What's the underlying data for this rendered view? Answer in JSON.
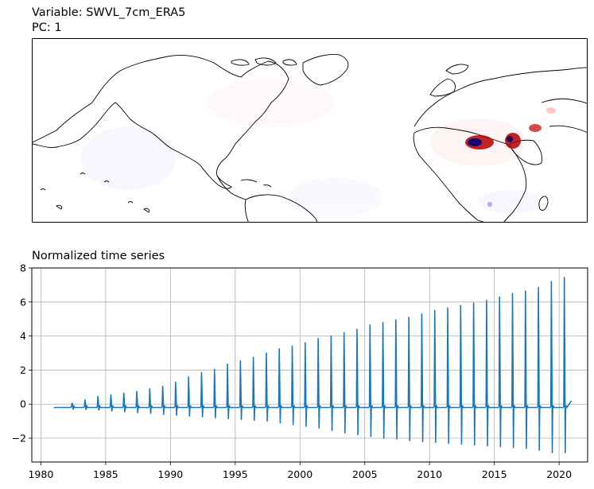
{
  "map_panel": {
    "title_line1": "Variable: SWVL_7cm_ERA5",
    "title_line2": "PC: 1",
    "colormap": "seismic (blue-white-red)"
  },
  "timeseries_panel": {
    "title": "Normalized time series"
  },
  "chart_data": {
    "type": "line",
    "title": "Normalized time series",
    "xlabel": "",
    "ylabel": "",
    "xlim": [
      1979.3,
      2022.2
    ],
    "ylim": [
      -3.4,
      8
    ],
    "x_ticks": [
      1980,
      1985,
      1990,
      1995,
      2000,
      2005,
      2010,
      2015,
      2020
    ],
    "x_tick_labels": [
      "1980",
      "1985",
      "1990",
      "1995",
      "2000",
      "2005",
      "2010",
      "2015",
      "2020"
    ],
    "y_ticks": [
      -2,
      0,
      2,
      4,
      6,
      8
    ],
    "y_tick_labels": [
      "−2",
      "0",
      "2",
      "4",
      "6",
      "8"
    ],
    "grid": true,
    "line_color": "#1f77b4",
    "baseline": -0.2,
    "series": [
      {
        "x_start": 1981.0,
        "x_end": 2020.95,
        "seasonal_peaks": {
          "years": [
            1982,
            1983,
            1984,
            1985,
            1986,
            1987,
            1988,
            1989,
            1990,
            1991,
            1992,
            1993,
            1994,
            1995,
            1996,
            1997,
            1998,
            1999,
            2000,
            2001,
            2002,
            2003,
            2004,
            2005,
            2006,
            2007,
            2008,
            2009,
            2010,
            2011,
            2012,
            2013,
            2014,
            2015,
            2016,
            2017,
            2018,
            2019,
            2020
          ],
          "max": [
            0.05,
            0.25,
            0.45,
            0.55,
            0.65,
            0.75,
            0.9,
            1.05,
            1.3,
            1.6,
            1.85,
            2.05,
            2.35,
            2.55,
            2.75,
            3.0,
            3.25,
            3.4,
            3.6,
            3.85,
            4.0,
            4.2,
            4.4,
            4.65,
            4.8,
            4.95,
            5.1,
            5.3,
            5.5,
            5.65,
            5.8,
            5.95,
            6.1,
            6.3,
            6.5,
            6.65,
            6.85,
            7.2,
            7.45
          ],
          "min": [
            -0.25,
            -0.3,
            -0.35,
            -0.4,
            -0.45,
            -0.5,
            -0.55,
            -0.6,
            -0.65,
            -0.7,
            -0.75,
            -0.8,
            -0.85,
            -0.9,
            -0.95,
            -1.0,
            -1.1,
            -1.2,
            -1.3,
            -1.4,
            -1.55,
            -1.7,
            -1.8,
            -1.9,
            -2.0,
            -2.05,
            -2.15,
            -2.2,
            -2.25,
            -2.3,
            -2.35,
            -2.4,
            -2.45,
            -2.5,
            -2.55,
            -2.6,
            -2.7,
            -2.85,
            -2.85
          ]
        },
        "end_value": 0.2
      }
    ]
  }
}
